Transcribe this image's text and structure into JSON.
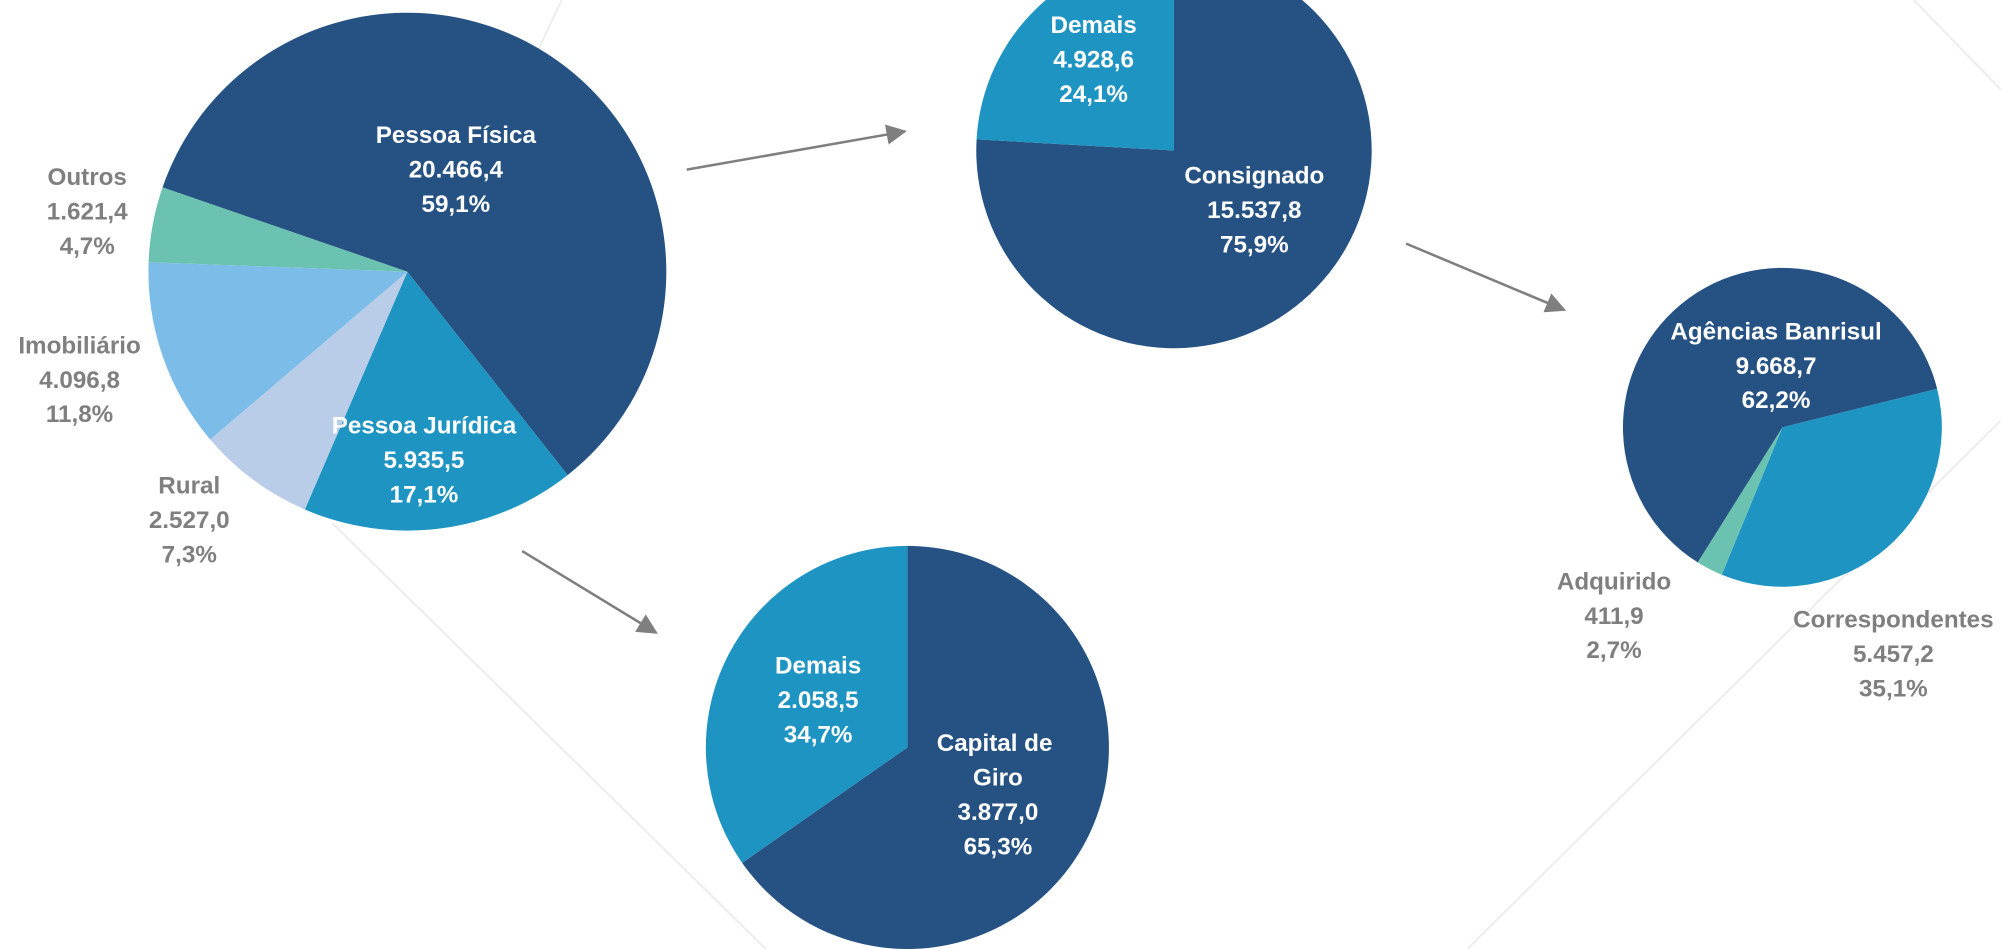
{
  "chart_data": [
    {
      "type": "pie",
      "categories": [
        "Pessoa Física",
        "Pessoa Jurídica",
        "Rural",
        "Imobiliário",
        "Outros"
      ],
      "values": [
        20466.4,
        5935.5,
        2527.0,
        4096.8,
        1621.4
      ],
      "value_labels": [
        "20.466,4",
        "5.935,5",
        "2.527,0",
        "4.096,8",
        "1.621,4"
      ],
      "percentages": [
        59.1,
        17.1,
        7.3,
        11.8,
        4.7
      ],
      "percentage_labels": [
        "59,1%",
        "17,1%",
        "7,3%",
        "11,8%",
        "4,7%"
      ],
      "colors": [
        "#255282",
        "#1e94c2",
        "#b9cde8",
        "#7bbce8",
        "#6cc2b0"
      ]
    },
    {
      "type": "pie",
      "categories": [
        "Consignado",
        "Demais"
      ],
      "values": [
        15537.8,
        4928.6
      ],
      "value_labels": [
        "15.537,8",
        "4.928,6"
      ],
      "percentages": [
        75.9,
        24.1
      ],
      "percentage_labels": [
        "75,9%",
        "24,1%"
      ],
      "colors": [
        "#255282",
        "#1e94c2"
      ]
    },
    {
      "type": "pie",
      "categories": [
        "Capital de Giro",
        "Demais"
      ],
      "values": [
        3877.0,
        2058.5
      ],
      "value_labels": [
        "3.877,0",
        "2.058,5"
      ],
      "percentages": [
        65.3,
        34.7
      ],
      "percentage_labels": [
        "65,3%",
        "34,7%"
      ],
      "colors": [
        "#255282",
        "#1e94c2"
      ]
    },
    {
      "type": "pie",
      "categories": [
        "Correspondentes",
        "Adquirido",
        "Agências Banrisul"
      ],
      "values": [
        5457.2,
        411.9,
        9668.7
      ],
      "value_labels": [
        "5.457,2",
        "411,9",
        "9.668,7"
      ],
      "percentages": [
        35.1,
        2.7,
        62.2
      ],
      "percentage_labels": [
        "35,1%",
        "2,7%",
        "62,2%"
      ],
      "colors": [
        "#1e94c2",
        "#6cc2b0",
        "#255282"
      ]
    }
  ]
}
